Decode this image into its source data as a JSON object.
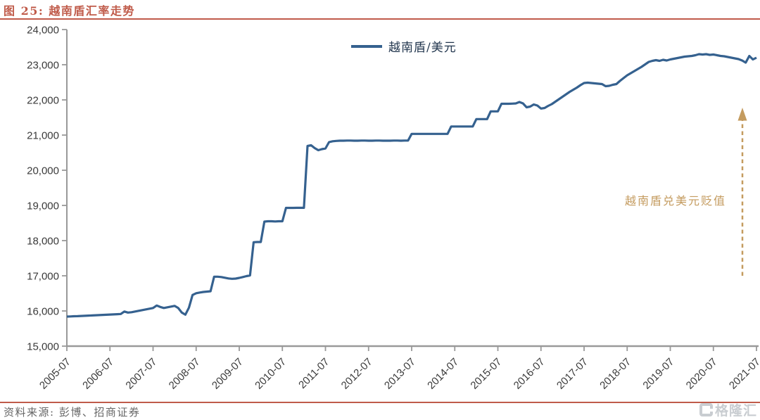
{
  "figure": {
    "title": "图 25: 越南盾汇率走势",
    "annotation": "越南盾兑美元贬值",
    "source_label": "资料来源: 彭博、招商证券",
    "brand": "格隆汇",
    "accent_color": "#C05B4A",
    "line_color": "#35618F",
    "annotation_color": "#C49B5F",
    "axis_color": "#999999"
  },
  "chart_data": {
    "type": "line",
    "title": "越南盾汇率走势",
    "legend": [
      "越南盾/美元"
    ],
    "legend_position": "top-center",
    "grid": false,
    "ylim": [
      15000,
      24000
    ],
    "y_ticks": [
      15000,
      16000,
      17000,
      18000,
      19000,
      20000,
      21000,
      22000,
      23000,
      24000
    ],
    "x_start": "2005-07",
    "x_end": "2021-07",
    "x_interval": "monthly",
    "x_tick_labels": [
      "2005-07",
      "2006-07",
      "2007-07",
      "2008-07",
      "2009-07",
      "2010-07",
      "2011-07",
      "2012-07",
      "2013-07",
      "2014-07",
      "2015-07",
      "2016-07",
      "2017-07",
      "2018-07",
      "2019-07",
      "2020-07",
      "2021-07"
    ],
    "annotation": {
      "text": "越南盾兑美元贬值",
      "arrow": "dashed-up",
      "position": "right"
    },
    "series": [
      {
        "name": "越南盾/美元",
        "values": [
          15840,
          15845,
          15850,
          15852,
          15858,
          15862,
          15868,
          15872,
          15878,
          15882,
          15888,
          15892,
          15898,
          15902,
          15908,
          15915,
          15985,
          15955,
          15965,
          15985,
          16005,
          16025,
          16045,
          16065,
          16085,
          16155,
          16115,
          16085,
          16105,
          16125,
          16145,
          16085,
          15955,
          15895,
          16095,
          16455,
          16505,
          16525,
          16540,
          16550,
          16560,
          16975,
          16975,
          16965,
          16945,
          16925,
          16915,
          16920,
          16940,
          16965,
          16990,
          17010,
          17955,
          17960,
          17960,
          18540,
          18550,
          18550,
          18545,
          18550,
          18550,
          18930,
          18930,
          18930,
          18932,
          18932,
          18932,
          20690,
          20710,
          20630,
          20570,
          20600,
          20620,
          20800,
          20825,
          20835,
          20840,
          20840,
          20845,
          20845,
          20840,
          20840,
          20845,
          20845,
          20840,
          20840,
          20845,
          20845,
          20840,
          20840,
          20840,
          20845,
          20845,
          20840,
          20845,
          20845,
          21035,
          21035,
          21035,
          21035,
          21035,
          21035,
          21035,
          21035,
          21035,
          21035,
          21035,
          21245,
          21245,
          21245,
          21245,
          21245,
          21245,
          21245,
          21455,
          21455,
          21455,
          21455,
          21673,
          21673,
          21673,
          21890,
          21890,
          21890,
          21895,
          21900,
          21940,
          21900,
          21790,
          21810,
          21870,
          21840,
          21755,
          21770,
          21830,
          21880,
          21950,
          22020,
          22090,
          22160,
          22230,
          22290,
          22350,
          22420,
          22480,
          22490,
          22480,
          22470,
          22460,
          22450,
          22390,
          22400,
          22430,
          22450,
          22540,
          22620,
          22700,
          22760,
          22820,
          22880,
          22940,
          23010,
          23080,
          23110,
          23130,
          23110,
          23140,
          23120,
          23150,
          23170,
          23190,
          23210,
          23230,
          23240,
          23250,
          23270,
          23300,
          23290,
          23300,
          23280,
          23290,
          23270,
          23250,
          23240,
          23220,
          23200,
          23180,
          23160,
          23120,
          23060,
          23250,
          23150,
          23200
        ]
      }
    ]
  }
}
